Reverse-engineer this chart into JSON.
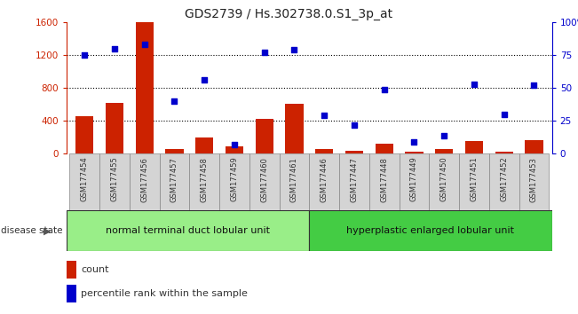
{
  "title": "GDS2739 / Hs.302738.0.S1_3p_at",
  "categories": [
    "GSM177454",
    "GSM177455",
    "GSM177456",
    "GSM177457",
    "GSM177458",
    "GSM177459",
    "GSM177460",
    "GSM177461",
    "GSM177446",
    "GSM177447",
    "GSM177448",
    "GSM177449",
    "GSM177450",
    "GSM177451",
    "GSM177452",
    "GSM177453"
  ],
  "counts": [
    460,
    620,
    1600,
    55,
    200,
    90,
    430,
    610,
    55,
    40,
    120,
    30,
    55,
    160,
    30,
    170
  ],
  "percentiles": [
    75,
    80,
    83,
    40,
    56,
    7,
    77,
    79,
    29,
    22,
    49,
    9,
    14,
    53,
    30,
    52
  ],
  "group1_label": "normal terminal duct lobular unit",
  "group2_label": "hyperplastic enlarged lobular unit",
  "group1_count": 8,
  "group2_count": 8,
  "ylim_left": [
    0,
    1600
  ],
  "ylim_right": [
    0,
    100
  ],
  "yticks_left": [
    0,
    400,
    800,
    1200,
    1600
  ],
  "yticks_right": [
    0,
    25,
    50,
    75,
    100
  ],
  "bar_color": "#cc2200",
  "dot_color": "#0000cc",
  "grid_color": "#000000",
  "bg_color": "#ffffff",
  "group1_color": "#99ee88",
  "group2_color": "#44cc44",
  "cell_color": "#d4d4d4",
  "left_axis_color": "#cc2200",
  "right_axis_color": "#0000cc",
  "legend_count_label": "count",
  "legend_pct_label": "percentile rank within the sample",
  "disease_state_label": "disease state"
}
